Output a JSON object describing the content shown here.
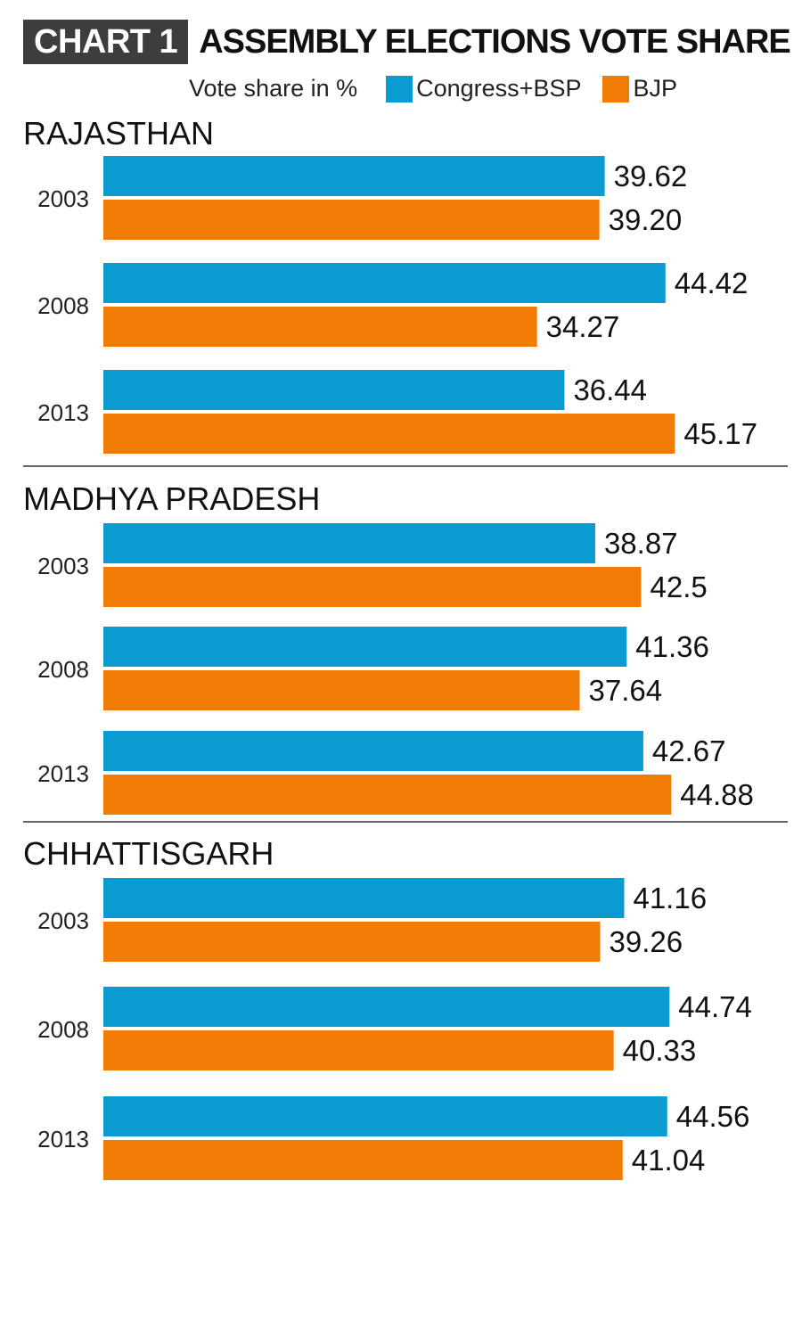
{
  "header": {
    "badge": "CHART 1",
    "title": "ASSEMBLY ELECTIONS VOTE SHARE"
  },
  "legend": {
    "unit": "Vote share in %",
    "items": [
      {
        "label": "Congress+BSP",
        "color": "#0a9bd0"
      },
      {
        "label": "BJP",
        "color": "#f07c05"
      }
    ]
  },
  "chart_data": {
    "type": "bar",
    "orientation": "horizontal",
    "xlim": [
      0,
      52
    ],
    "grid": false,
    "legend_position": "top",
    "series_names": [
      "Congress+BSP",
      "BJP"
    ],
    "panels": [
      {
        "state": "RAJASTHAN",
        "groups": [
          {
            "year": "2003",
            "values": [
              39.62,
              39.2
            ],
            "labels": [
              "39.62",
              "39.20"
            ]
          },
          {
            "year": "2008",
            "values": [
              44.42,
              34.27
            ],
            "labels": [
              "44.42",
              "34.27"
            ]
          },
          {
            "year": "2013",
            "values": [
              36.44,
              45.17
            ],
            "labels": [
              "36.44",
              "45.17"
            ]
          }
        ]
      },
      {
        "state": "MADHYA PRADESH",
        "groups": [
          {
            "year": "2003",
            "values": [
              38.87,
              42.5
            ],
            "labels": [
              "38.87",
              "42.5"
            ]
          },
          {
            "year": "2008",
            "values": [
              41.36,
              37.64
            ],
            "labels": [
              "41.36",
              "37.64"
            ]
          },
          {
            "year": "2013",
            "values": [
              42.67,
              44.88
            ],
            "labels": [
              "42.67",
              "44.88"
            ]
          }
        ]
      },
      {
        "state": "CHHATTISGARH",
        "groups": [
          {
            "year": "2003",
            "values": [
              41.16,
              39.26
            ],
            "labels": [
              "41.16",
              "39.26"
            ]
          },
          {
            "year": "2008",
            "values": [
              44.74,
              40.33
            ],
            "labels": [
              "44.74",
              "40.33"
            ]
          },
          {
            "year": "2013",
            "values": [
              44.56,
              41.04
            ],
            "labels": [
              "44.56",
              "41.04"
            ]
          }
        ]
      }
    ]
  }
}
